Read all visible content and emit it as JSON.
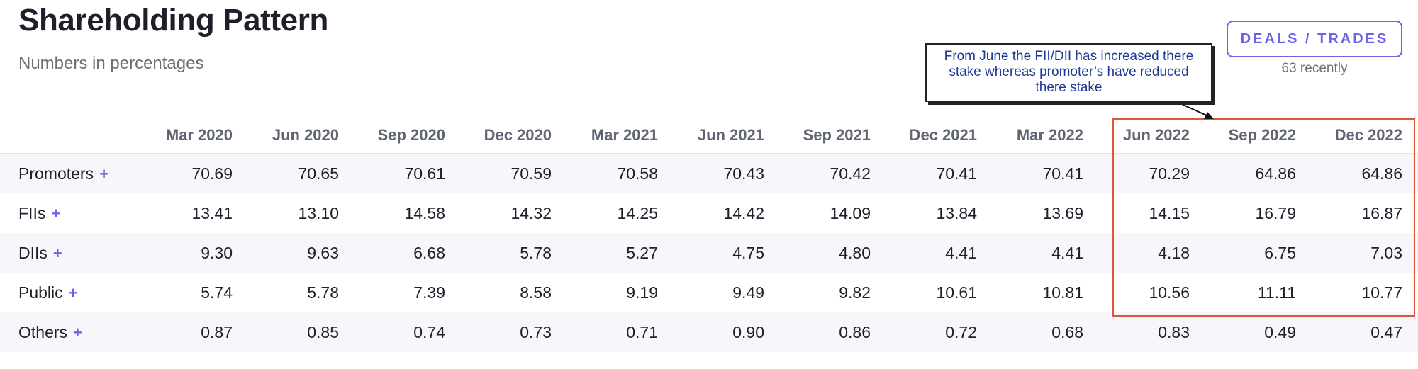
{
  "header": {
    "title": "Shareholding Pattern",
    "subtitle": "Numbers in percentages"
  },
  "deals": {
    "button_label": "DEALS / TRADES",
    "recent": "63 recently"
  },
  "annotation": {
    "text": "From June the FII/DII has increased there stake whereas promoter’s have reduced there stake"
  },
  "colors": {
    "accent": "#6c63e6",
    "annotation_text": "#1f3a93",
    "highlight_border": "#e0563d",
    "stripe": "#f6f6fb"
  },
  "table": {
    "columns": [
      "Mar 2020",
      "Jun 2020",
      "Sep 2020",
      "Dec 2020",
      "Mar 2021",
      "Jun 2021",
      "Sep 2021",
      "Dec 2021",
      "Mar 2022",
      "Jun 2022",
      "Sep 2022",
      "Dec 2022"
    ],
    "rows": [
      {
        "name": "Promoters",
        "expand": "+",
        "values": [
          "70.69",
          "70.65",
          "70.61",
          "70.59",
          "70.58",
          "70.43",
          "70.42",
          "70.41",
          "70.41",
          "70.29",
          "64.86",
          "64.86"
        ]
      },
      {
        "name": "FIIs",
        "expand": "+",
        "values": [
          "13.41",
          "13.10",
          "14.58",
          "14.32",
          "14.25",
          "14.42",
          "14.09",
          "13.84",
          "13.69",
          "14.15",
          "16.79",
          "16.87"
        ]
      },
      {
        "name": "DIIs",
        "expand": "+",
        "values": [
          "9.30",
          "9.63",
          "6.68",
          "5.78",
          "5.27",
          "4.75",
          "4.80",
          "4.41",
          "4.41",
          "4.18",
          "6.75",
          "7.03"
        ]
      },
      {
        "name": "Public",
        "expand": "+",
        "values": [
          "5.74",
          "5.78",
          "7.39",
          "8.58",
          "9.19",
          "9.49",
          "9.82",
          "10.61",
          "10.81",
          "10.56",
          "11.11",
          "10.77"
        ]
      },
      {
        "name": "Others",
        "expand": "+",
        "values": [
          "0.87",
          "0.85",
          "0.74",
          "0.73",
          "0.71",
          "0.90",
          "0.86",
          "0.72",
          "0.68",
          "0.83",
          "0.49",
          "0.47"
        ]
      }
    ]
  }
}
